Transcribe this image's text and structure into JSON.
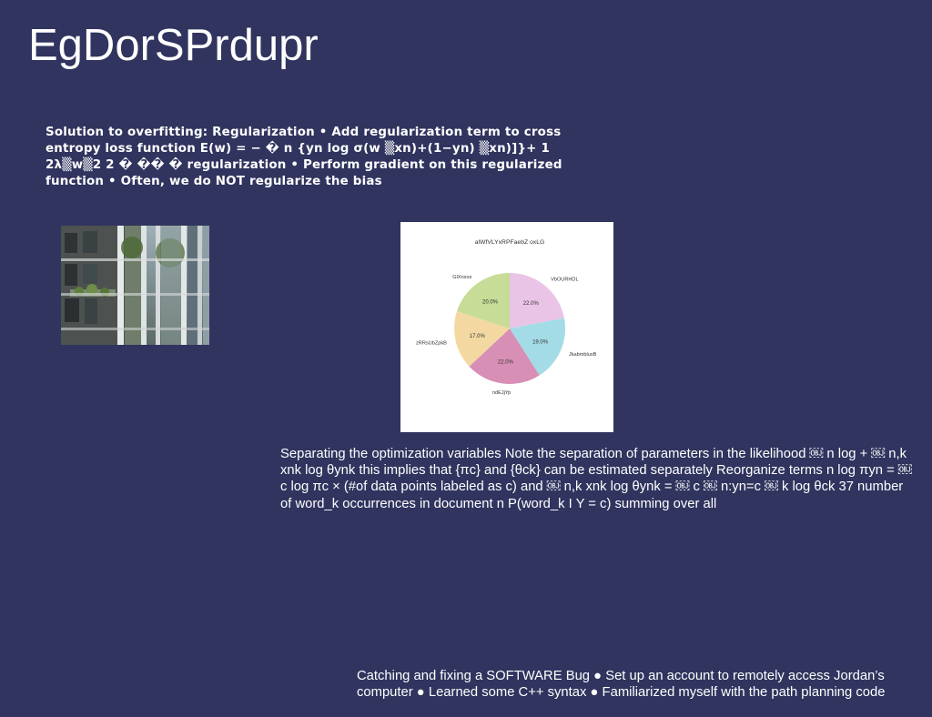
{
  "slide": {
    "background": "#30345e",
    "title": "EgDorSPrdupr",
    "text_block_bold": "Solution to overfitting: Regularization • Add regularization term to cross entropy loss function E(w) = − � n {yn log σ(w ▒xn)+(1−yn) ▒xn)]}+ 1 2λ▒w▒2 2 � �� � regularization • Perform gradient on this regularized function • Often, we do NOT regularize the bias",
    "photo": {
      "icon": "building-facade-photo"
    },
    "text_block_regular": "Separating the optimization variables Note the separation of parameters in the likelihood ￼ n log + ￼ n,k xnk log θynk this implies that {πc} and {θck} can be estimated separately Reorganize terms n log πyn = ￼ c log πc × (#of data points labeled as c) and ￼ n,k xnk log θynk = ￼ c ￼ n:yn=c ￼ k log θck 37 number of word_k occurrences in document n P(word_k I Y = c) summing over all",
    "text_block_footer": "Catching and fixing a SOFTWARE Bug ● Set up an account to remotely access Jordan’s computer ● Learned some C++ syntax ● Familiarized myself with the path planning code"
  },
  "chart_data": {
    "type": "pie",
    "title": "alWfVLYxRPFaebZ oxLG",
    "labels": [
      "VbOURHDL",
      "JkabmbluxB",
      "ndEJjYp",
      "zRRsUbZpkB",
      "GlXnxoz"
    ],
    "values": [
      22.0,
      19.0,
      22.0,
      17.0,
      20.0
    ],
    "value_labels": [
      "22.0%",
      "19.0%",
      "22.0%",
      "17.0%",
      "20.0%"
    ],
    "colors": [
      "#e9c4e6",
      "#a3dce6",
      "#d78fb5",
      "#f3d9a1",
      "#c6dc97"
    ],
    "start_angle_deg": 90,
    "direction": "clockwise",
    "legend": "none"
  }
}
